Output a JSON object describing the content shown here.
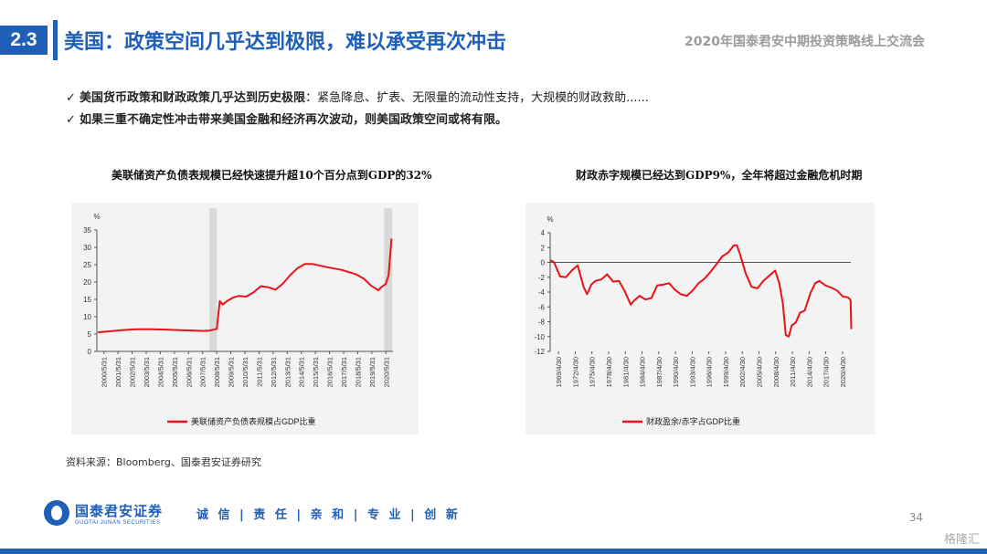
{
  "header": {
    "section": "2.3",
    "title": "美国：政策空间几乎达到极限，难以承受再次冲击",
    "subtitle": "2020年国泰君安中期投资策略线上交流会"
  },
  "bullets": [
    {
      "check": "✓",
      "bold": "美国货币政策和财政政策几乎达到历史极限",
      "rest": "：紧急降息、扩表、无限量的流动性支持，大规模的财政救助......"
    },
    {
      "check": "✓",
      "bold": "如果三重不确定性冲击带来美国金融和经济再次波动，则美国政策空间或将有限。",
      "rest": ""
    }
  ],
  "source": "资料来源：Bloomberg、国泰君安证券研究",
  "footer": {
    "logo_cn": "国泰君安证券",
    "logo_en": "GUOTAI JUNAN SECURITIES",
    "motto": "诚 信 | 责 任 | 亲 和 | 专 业 | 创 新",
    "page": "34",
    "watermark": "格隆汇"
  },
  "colors": {
    "brand": "#1f5fb8",
    "line": "#e8131a",
    "shade": "#d9d9d9"
  },
  "chart_data": [
    {
      "type": "line",
      "title": "美联储资产负债表规模已经快速提升超10个百分点到GDP的32%",
      "ylabel": "%",
      "ylim": [
        0,
        35
      ],
      "yticks": [
        0,
        5,
        10,
        15,
        20,
        25,
        30,
        35
      ],
      "xlim": [
        2000.33,
        2020.5
      ],
      "xticks": [
        "2000/5/31",
        "2001/5/31",
        "2002/5/31",
        "2003/5/31",
        "2004/5/31",
        "2005/5/31",
        "2006/5/31",
        "2007/5/31",
        "2008/5/31",
        "2009/5/31",
        "2010/5/31",
        "2011/5/31",
        "2012/5/31",
        "2013/5/31",
        "2014/5/31",
        "2015/5/31",
        "2016/5/31",
        "2017/5/31",
        "2018/5/31",
        "2019/5/31",
        "2020/5/31"
      ],
      "shaded": [
        [
          2008.0,
          2008.5
        ],
        [
          2019.9,
          2020.45
        ]
      ],
      "legend_position": "bottom",
      "series": [
        {
          "name": "美联储资产负债表规模占GDP比重",
          "x": [
            2000.4,
            2001.0,
            2002.0,
            2003.0,
            2004.0,
            2005.0,
            2006.0,
            2007.0,
            2007.6,
            2008.0,
            2008.5,
            2008.7,
            2008.9,
            2009.2,
            2009.6,
            2010.0,
            2010.5,
            2011.0,
            2011.5,
            2012.0,
            2012.5,
            2013.0,
            2013.5,
            2014.0,
            2014.5,
            2015.0,
            2016.0,
            2017.0,
            2018.0,
            2018.5,
            2019.0,
            2019.5,
            2019.7,
            2020.0,
            2020.2,
            2020.4
          ],
          "y": [
            5.5,
            5.7,
            6.1,
            6.4,
            6.4,
            6.3,
            6.1,
            6.0,
            5.9,
            6.0,
            6.5,
            14.5,
            13.5,
            14.5,
            15.5,
            16.0,
            15.8,
            17.0,
            18.8,
            18.5,
            17.8,
            19.5,
            22.0,
            24.0,
            25.2,
            25.2,
            24.3,
            23.5,
            22.2,
            21.0,
            19.0,
            17.6,
            18.5,
            19.4,
            22.0,
            32.5
          ]
        }
      ]
    },
    {
      "type": "line",
      "title": "财政赤字规模已经达到GDP9%，全年将超过金融危机时期",
      "ylabel": "%",
      "ylim": [
        -12,
        4
      ],
      "yticks": [
        -12,
        -10,
        -8,
        -6,
        -4,
        -2,
        0,
        2,
        4
      ],
      "xlim": [
        1969.33,
        2020.33
      ],
      "xticks": [
        "1969/4/30",
        "1972/4/30",
        "1975/4/30",
        "1978/4/30",
        "1981/4/30",
        "1984/4/30",
        "1987/4/30",
        "1990/4/30",
        "1993/4/30",
        "1996/4/30",
        "1999/4/30",
        "2002/4/30",
        "2005/4/30",
        "2008/4/30",
        "2011/4/30",
        "2014/4/30",
        "2017/4/30",
        "2020/4/30"
      ],
      "legend_position": "bottom",
      "series": [
        {
          "name": "财政盈余/赤字占GDP比重",
          "x": [
            1969.4,
            1970.0,
            1971.0,
            1972.0,
            1973.0,
            1974.0,
            1975.0,
            1975.6,
            1976.3,
            1977.0,
            1978.0,
            1979.0,
            1980.0,
            1981.0,
            1982.0,
            1983.0,
            1983.5,
            1984.5,
            1985.5,
            1986.5,
            1987.5,
            1988.5,
            1989.5,
            1990.5,
            1991.5,
            1992.5,
            1993.5,
            1994.5,
            1995.5,
            1996.5,
            1997.5,
            1998.5,
            1999.5,
            2000.5,
            2001.0,
            2001.5,
            2002.5,
            2003.5,
            2004.5,
            2005.5,
            2006.5,
            2007.5,
            2008.2,
            2008.8,
            2009.3,
            2009.8,
            2010.3,
            2011.0,
            2011.7,
            2012.5,
            2013.5,
            2014.3,
            2015.0,
            2016.0,
            2017.0,
            2018.0,
            2019.0,
            2019.8,
            2020.2,
            2020.3,
            2020.4
          ],
          "y": [
            0.3,
            0.0,
            -1.9,
            -2.0,
            -1.1,
            -0.4,
            -3.3,
            -4.3,
            -3.0,
            -2.5,
            -2.3,
            -1.6,
            -2.6,
            -2.5,
            -3.9,
            -5.7,
            -5.2,
            -4.5,
            -5.0,
            -4.8,
            -3.1,
            -3.0,
            -2.8,
            -3.7,
            -4.3,
            -4.5,
            -3.8,
            -2.8,
            -2.2,
            -1.3,
            -0.3,
            0.8,
            1.3,
            2.3,
            2.3,
            1.2,
            -1.5,
            -3.3,
            -3.5,
            -2.5,
            -1.8,
            -1.1,
            -2.8,
            -5.5,
            -9.8,
            -10.0,
            -8.5,
            -8.1,
            -6.8,
            -6.5,
            -4.1,
            -2.8,
            -2.5,
            -3.1,
            -3.4,
            -3.8,
            -4.6,
            -4.7,
            -5.0,
            -5.2,
            -9.0
          ]
        }
      ]
    }
  ]
}
